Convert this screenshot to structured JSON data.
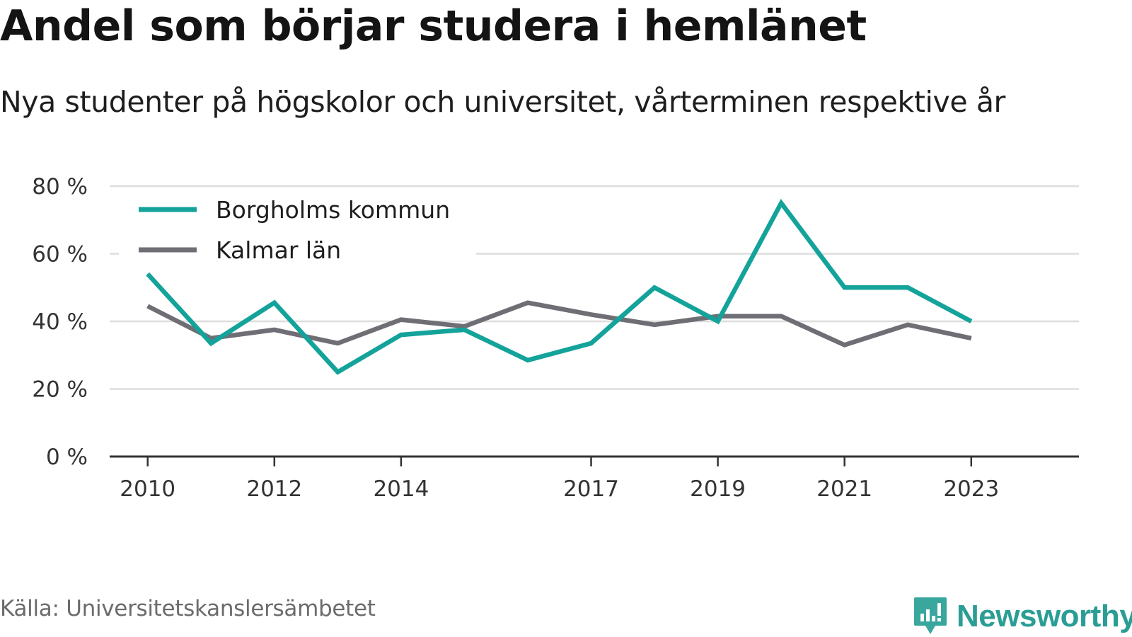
{
  "header": {
    "title": "Andel som börjar studera i hemlänet",
    "subtitle": "Nya studenter på högskolor och universitet, vårterminen respektive år"
  },
  "footer": {
    "source": "Källa: Universitetskanslersämbetet",
    "brand": "Newsworthy"
  },
  "colors": {
    "borgholm": "#14a39a",
    "kalmar": "#6f6e75",
    "grid": "#dddddd",
    "axis": "#333333"
  },
  "chart_data": {
    "type": "line",
    "title": "Andel som börjar studera i hemlänet",
    "subtitle": "Nya studenter på högskolor och universitet, vårterminen respektive år",
    "x": [
      2010,
      2011,
      2012,
      2013,
      2014,
      2015,
      2016,
      2017,
      2018,
      2019,
      2020,
      2021,
      2022,
      2023
    ],
    "x_tick_labels": [
      "2010",
      "2012",
      "2014",
      "2017",
      "2019",
      "2021",
      "2023"
    ],
    "y_tick_labels": [
      "0 %",
      "20 %",
      "40 %",
      "60 %",
      "80 %"
    ],
    "y_ticks": [
      0,
      20,
      40,
      60,
      80
    ],
    "ylim": [
      0,
      80
    ],
    "xlim": [
      2009.4,
      2024.7
    ],
    "y_unit": "%",
    "grid": true,
    "legend_position": "top-left",
    "series": [
      {
        "name": "Borgholms kommun",
        "color": "#14a39a",
        "values": [
          54,
          33.5,
          45.5,
          25,
          36,
          37.5,
          28.5,
          33.5,
          50,
          40,
          75,
          50,
          50,
          40
        ]
      },
      {
        "name": "Kalmar län",
        "color": "#6f6e75",
        "values": [
          44.5,
          35,
          37.5,
          33.5,
          40.5,
          38.5,
          45.5,
          42,
          39,
          41.5,
          41.5,
          33,
          39,
          35
        ]
      }
    ]
  }
}
